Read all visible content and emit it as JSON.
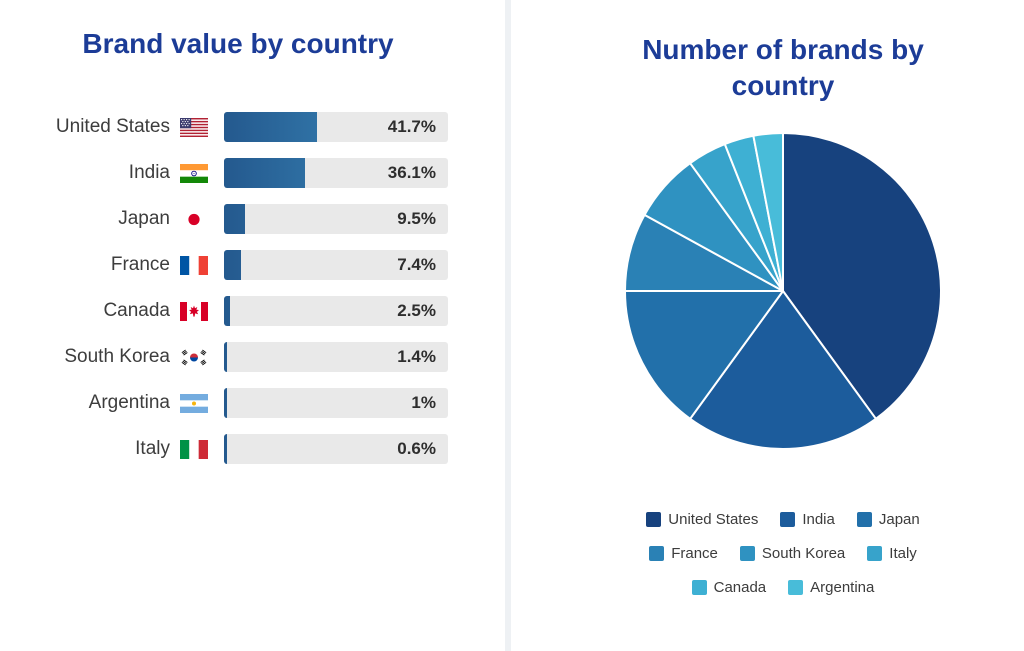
{
  "ui": {
    "title_color": "#1c3c97",
    "text_color": "#3d3d3d",
    "value_label_color": "#2e2e2e",
    "bar_track_color": "#e9e9e9",
    "bar_gradient_start": "#24598e",
    "bar_gradient_end": "#3f93c4",
    "divider_color": "#eef1f4"
  },
  "chart_data": [
    {
      "type": "bar",
      "orientation": "horizontal",
      "title": "Brand value by country",
      "categories": [
        "United States",
        "India",
        "Japan",
        "France",
        "Canada",
        "South Korea",
        "Argentina",
        "Italy"
      ],
      "values": [
        41.7,
        36.1,
        9.5,
        7.4,
        2.5,
        1.4,
        1,
        0.6
      ],
      "value_labels": [
        "41.7%",
        "36.1%",
        "9.5%",
        "7.4%",
        "2.5%",
        "1.4%",
        "1%",
        "0.6%"
      ],
      "flags": [
        "us",
        "in",
        "jp",
        "fr",
        "ca",
        "kr",
        "ar",
        "it"
      ],
      "xlim": [
        0,
        100
      ],
      "unit": "%",
      "grid": false
    },
    {
      "type": "pie",
      "title": "Number of brands by country",
      "labels": [
        "United States",
        "India",
        "Japan",
        "France",
        "South Korea",
        "Italy",
        "Canada",
        "Argentina"
      ],
      "values": [
        40,
        20,
        15,
        8,
        7,
        4,
        3,
        3
      ],
      "colors": [
        "#17427e",
        "#1c5c9c",
        "#2270aa",
        "#2a81b5",
        "#2f92c1",
        "#37a3cb",
        "#3eb0d3",
        "#48bcd9"
      ],
      "legend_position": "bottom",
      "legend_rows": [
        [
          "United States",
          "India",
          "Japan"
        ],
        [
          "France",
          "South Korea",
          "Italy"
        ],
        [
          "Canada",
          "Argentina"
        ]
      ]
    }
  ]
}
